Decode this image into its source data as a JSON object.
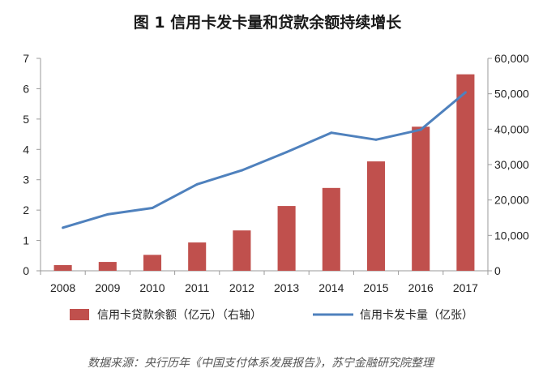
{
  "chart_data": {
    "type": "bar+line",
    "title": "图 1  信用卡发卡量和贷款余额持续增长",
    "categories": [
      "2008",
      "2009",
      "2010",
      "2011",
      "2012",
      "2013",
      "2014",
      "2015",
      "2016",
      "2017"
    ],
    "series": [
      {
        "name": "信用卡贷款余额（亿元）（右轴）",
        "type": "bar",
        "axis": "right",
        "color": "#c0504d",
        "values": [
          1600,
          2500,
          4500,
          8000,
          11400,
          18300,
          23400,
          30900,
          40700,
          55500
        ]
      },
      {
        "name": "信用卡发卡量（亿张）",
        "type": "line",
        "axis": "left",
        "color": "#4f81bd",
        "values": [
          1.42,
          1.86,
          2.07,
          2.85,
          3.31,
          3.91,
          4.55,
          4.32,
          4.65,
          5.88
        ]
      }
    ],
    "y_left": {
      "min": 0,
      "max": 7,
      "ticks": [
        "0",
        "1",
        "2",
        "3",
        "4",
        "5",
        "6",
        "7"
      ]
    },
    "y_right": {
      "min": 0,
      "max": 60000,
      "ticks": [
        "0",
        "10,000",
        "20,000",
        "30,000",
        "40,000",
        "50,000",
        "60,000"
      ]
    },
    "grid": false,
    "legend_position": "bottom"
  },
  "legend": {
    "bar_label": "信用卡贷款余额（亿元）（右轴）",
    "line_label": "信用卡发卡量（亿张）"
  },
  "source_note": "数据来源：央行历年《中国支付体系发展报告》，苏宁金融研究院整理"
}
